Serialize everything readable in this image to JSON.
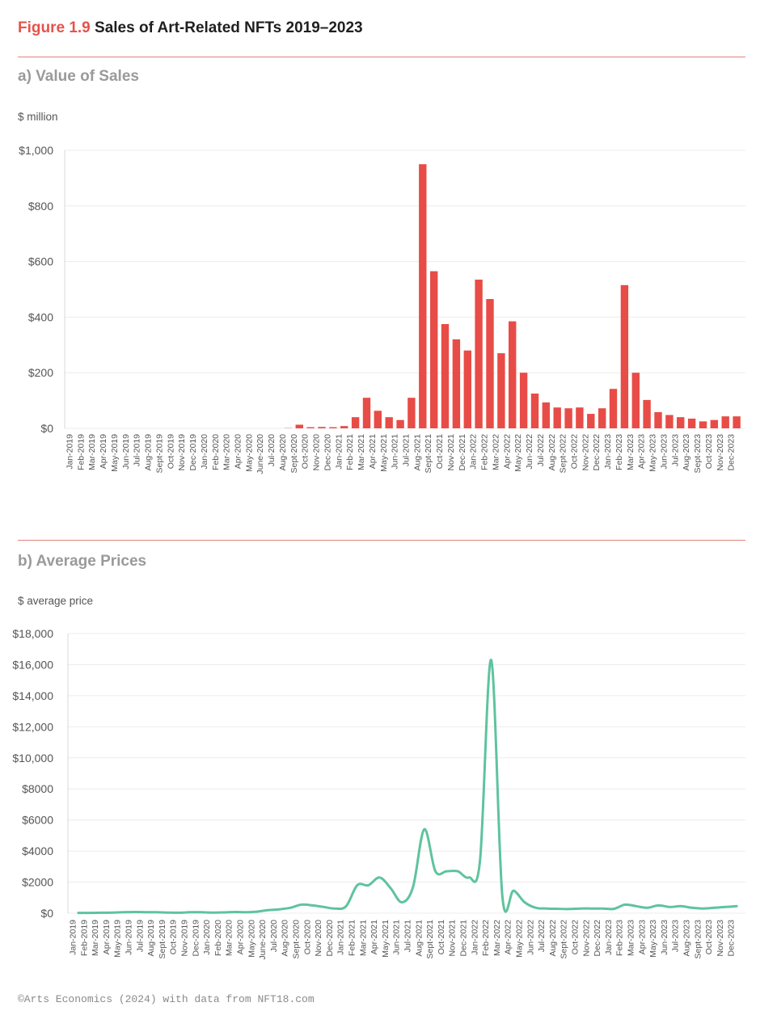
{
  "figure": {
    "number": "Figure 1.9",
    "title": "Sales of Art-Related NFTs 2019–2023",
    "credit": "©Arts Economics (2024) with data from NFT18.com"
  },
  "colors": {
    "bar": "#e84c47",
    "line": "#5ec39e",
    "accent": "#e5534b",
    "grid": "#ececec"
  },
  "chart_data": [
    {
      "type": "bar",
      "title": "a) Value of Sales",
      "ylabel": "$ million",
      "ylim": [
        0,
        1000
      ],
      "yticks": [
        0,
        200,
        400,
        600,
        800,
        1000
      ],
      "ytick_labels": [
        "$0",
        "$200",
        "$400",
        "$600",
        "$800",
        "$1,000"
      ],
      "categories": [
        "Jan-2019",
        "Feb-2019",
        "Mar-2019",
        "Apr-2019",
        "May-2019",
        "Jun-2019",
        "Jul-2019",
        "Aug-2019",
        "Sept-2019",
        "Oct-2019",
        "Nov-2019",
        "Dec-2019",
        "Jan-2020",
        "Feb-2020",
        "Mar-2020",
        "Apr-2020",
        "May-2020",
        "June-2020",
        "Jul-2020",
        "Aug-2020",
        "Sept-2020",
        "Oct-2020",
        "Nov-2020",
        "Dec-2020",
        "Jan-2021",
        "Feb-2021",
        "Mar-2021",
        "Apr-2021",
        "May-2021",
        "Jun-2021",
        "Jul-2021",
        "Aug-2021",
        "Sept-2021",
        "Oct-2021",
        "Nov-2021",
        "Dec-2021",
        "Jan-2022",
        "Feb-2022",
        "Mar-2022",
        "Apr-2022",
        "May-2022",
        "Jun-2022",
        "Jul-2022",
        "Aug-2022",
        "Sept-2022",
        "Oct-2022",
        "Nov-2022",
        "Dec-2022",
        "Jan-2023",
        "Feb-2023",
        "Mar-2023",
        "Apr-2023",
        "May-2023",
        "Jun-2023",
        "Jul-2023",
        "Aug-2023",
        "Sept-2023",
        "Oct-2023",
        "Nov-2023",
        "Dec-2023"
      ],
      "values": [
        0,
        0,
        0,
        0,
        0,
        0,
        0,
        0,
        0,
        0,
        0,
        0,
        0,
        0,
        0,
        0,
        0,
        0,
        0,
        1,
        13,
        4,
        5,
        4,
        8,
        40,
        110,
        63,
        40,
        30,
        110,
        950,
        565,
        375,
        320,
        280,
        535,
        465,
        270,
        385,
        200,
        125,
        93,
        75,
        72,
        75,
        52,
        72,
        142,
        515,
        200,
        102,
        58,
        48,
        40,
        35,
        25,
        30,
        43,
        43
      ]
    },
    {
      "type": "line",
      "title": "b) Average Prices",
      "ylabel": "$ average price",
      "ylim": [
        0,
        18000
      ],
      "yticks": [
        0,
        2000,
        4000,
        6000,
        8000,
        10000,
        12000,
        14000,
        16000,
        18000
      ],
      "ytick_labels": [
        "$0",
        "$2000",
        "$4000",
        "$6000",
        "$8000",
        "$10,000",
        "$12,000",
        "$14,000",
        "$16,000",
        "$18,000"
      ],
      "categories": [
        "Jan-2019",
        "Feb-2019",
        "Mar-2019",
        "Apr-2019",
        "May-2019",
        "Jun-2019",
        "Jul-2019",
        "Aug-2019",
        "Sept-2019",
        "Oct-2019",
        "Nov-2019",
        "Dec-2019",
        "Jan-2020",
        "Feb-2020",
        "Mar-2020",
        "Apr-2020",
        "May-2020",
        "June-2020",
        "Jul-2020",
        "Aug-2020",
        "Sept-2020",
        "Oct-2020",
        "Nov-2020",
        "Dec-2020",
        "Jan-2021",
        "Feb-2021",
        "Mar-2021",
        "Apr-2021",
        "May-2021",
        "Jun-2021",
        "Jul-2021",
        "Aug-2021",
        "Sept-2021",
        "Oct-2021",
        "Nov-2021",
        "Dec-2021",
        "Jan-2022",
        "Feb-2022",
        "Mar-2022",
        "Apr-2022",
        "May-2022",
        "Jun-2022",
        "Jul-2022",
        "Aug-2022",
        "Sept-2022",
        "Oct-2022",
        "Nov-2022",
        "Dec-2022",
        "Jan-2023",
        "Feb-2023",
        "Mar-2023",
        "Apr-2023",
        "May-2023",
        "Jun-2023",
        "Jul-2023",
        "Aug-2023",
        "Sept-2023",
        "Oct-2023",
        "Nov-2023",
        "Dec-2023"
      ],
      "values": [
        20,
        20,
        30,
        40,
        60,
        80,
        70,
        60,
        40,
        30,
        60,
        60,
        40,
        50,
        80,
        60,
        100,
        200,
        250,
        350,
        550,
        500,
        400,
        300,
        450,
        1800,
        1800,
        2300,
        1600,
        700,
        1700,
        5400,
        2700,
        2700,
        2700,
        2300,
        3400,
        16300,
        1100,
        1450,
        700,
        350,
        300,
        280,
        270,
        300,
        300,
        300,
        280,
        550,
        450,
        350,
        500,
        400,
        450,
        350,
        300,
        350,
        400,
        450
      ]
    }
  ]
}
